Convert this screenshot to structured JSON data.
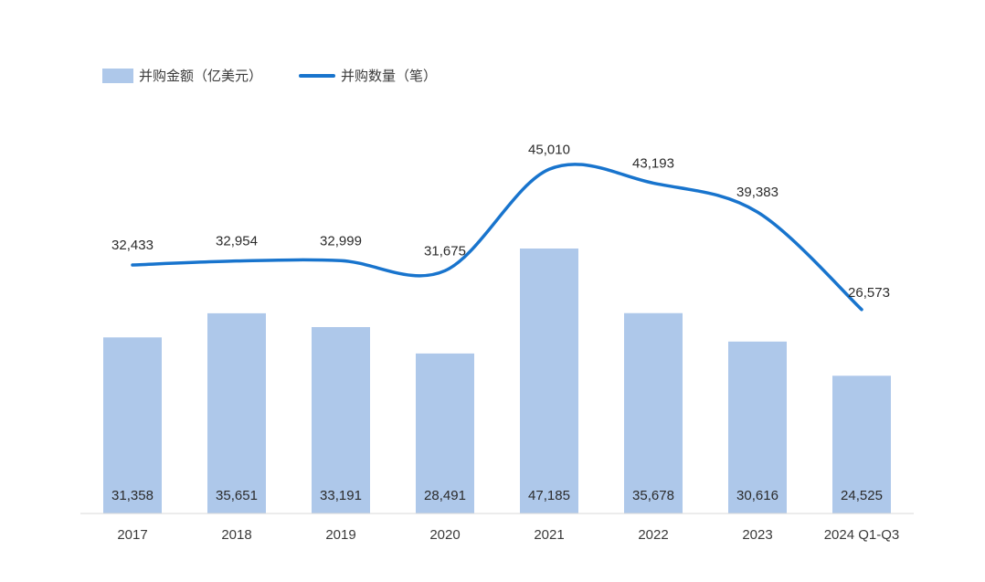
{
  "chart_data": {
    "type": "bar",
    "categories": [
      "2017",
      "2018",
      "2019",
      "2020",
      "2021",
      "2022",
      "2023",
      "2024 Q1-Q3"
    ],
    "series": [
      {
        "name": "并购金额（亿美元）",
        "type": "bar",
        "values": [
          31358,
          35651,
          33191,
          28491,
          47185,
          35678,
          30616,
          24525
        ],
        "labels": [
          "31,358",
          "35,651",
          "33,191",
          "28,491",
          "47,185",
          "35,678",
          "30,616",
          "24,525"
        ],
        "color": "#aec8ea"
      },
      {
        "name": "并购数量（笔）",
        "type": "line",
        "values": [
          32433,
          32954,
          32999,
          31675,
          45010,
          43193,
          39383,
          26573
        ],
        "labels": [
          "32,433",
          "32,954",
          "32,999",
          "31,675",
          "45,010",
          "43,193",
          "39,383",
          "26,573"
        ],
        "color": "#1874cd"
      }
    ],
    "bar_ylim": [
      0,
      55000
    ],
    "line_ylim": [
      0,
      60000
    ],
    "grid": false,
    "legend_position": "top-left"
  }
}
